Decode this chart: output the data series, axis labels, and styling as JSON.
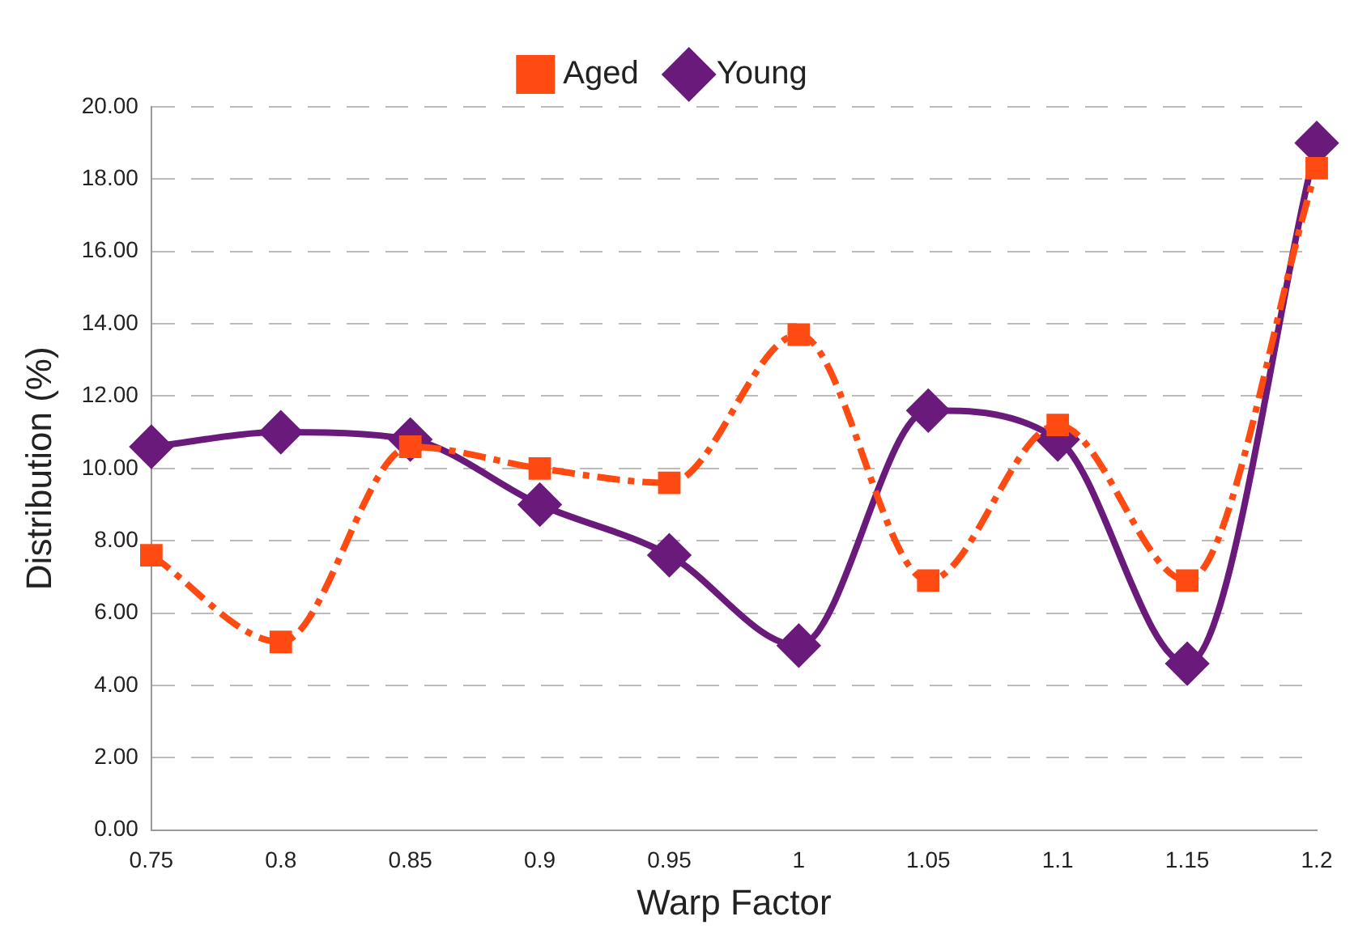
{
  "chart_data": {
    "type": "line",
    "xlabel": "Warp Factor",
    "ylabel": "Distribution (%)",
    "categories": [
      "0.75",
      "0.8",
      "0.85",
      "0.9",
      "0.95",
      "1",
      "1.05",
      "1.1",
      "1.15",
      "1.2"
    ],
    "series": [
      {
        "name": "Aged",
        "color": "#ff4a12",
        "marker": "square",
        "line_style": "dashed",
        "values": [
          7.6,
          5.2,
          10.6,
          10.0,
          9.6,
          13.7,
          6.9,
          11.2,
          6.9,
          18.3
        ]
      },
      {
        "name": "Young",
        "color": "#6a1a7a",
        "marker": "diamond",
        "line_style": "solid",
        "values": [
          10.6,
          11.0,
          10.8,
          9.0,
          7.6,
          5.1,
          11.6,
          10.8,
          4.6,
          19.0
        ]
      }
    ],
    "ylim": [
      0,
      20
    ],
    "yticks": [
      {
        "value": 0,
        "label": "0.00"
      },
      {
        "value": 2,
        "label": "2.00"
      },
      {
        "value": 4,
        "label": "4.00"
      },
      {
        "value": 6,
        "label": "6.00"
      },
      {
        "value": 8,
        "label": "8.00"
      },
      {
        "value": 10,
        "label": "10.00"
      },
      {
        "value": 12,
        "label": "12.00"
      },
      {
        "value": 14,
        "label": "14.00"
      },
      {
        "value": 16,
        "label": "16.00"
      },
      {
        "value": 18,
        "label": "18.00"
      },
      {
        "value": 20,
        "label": "20.00"
      }
    ],
    "grid": "y",
    "legend": "top"
  }
}
